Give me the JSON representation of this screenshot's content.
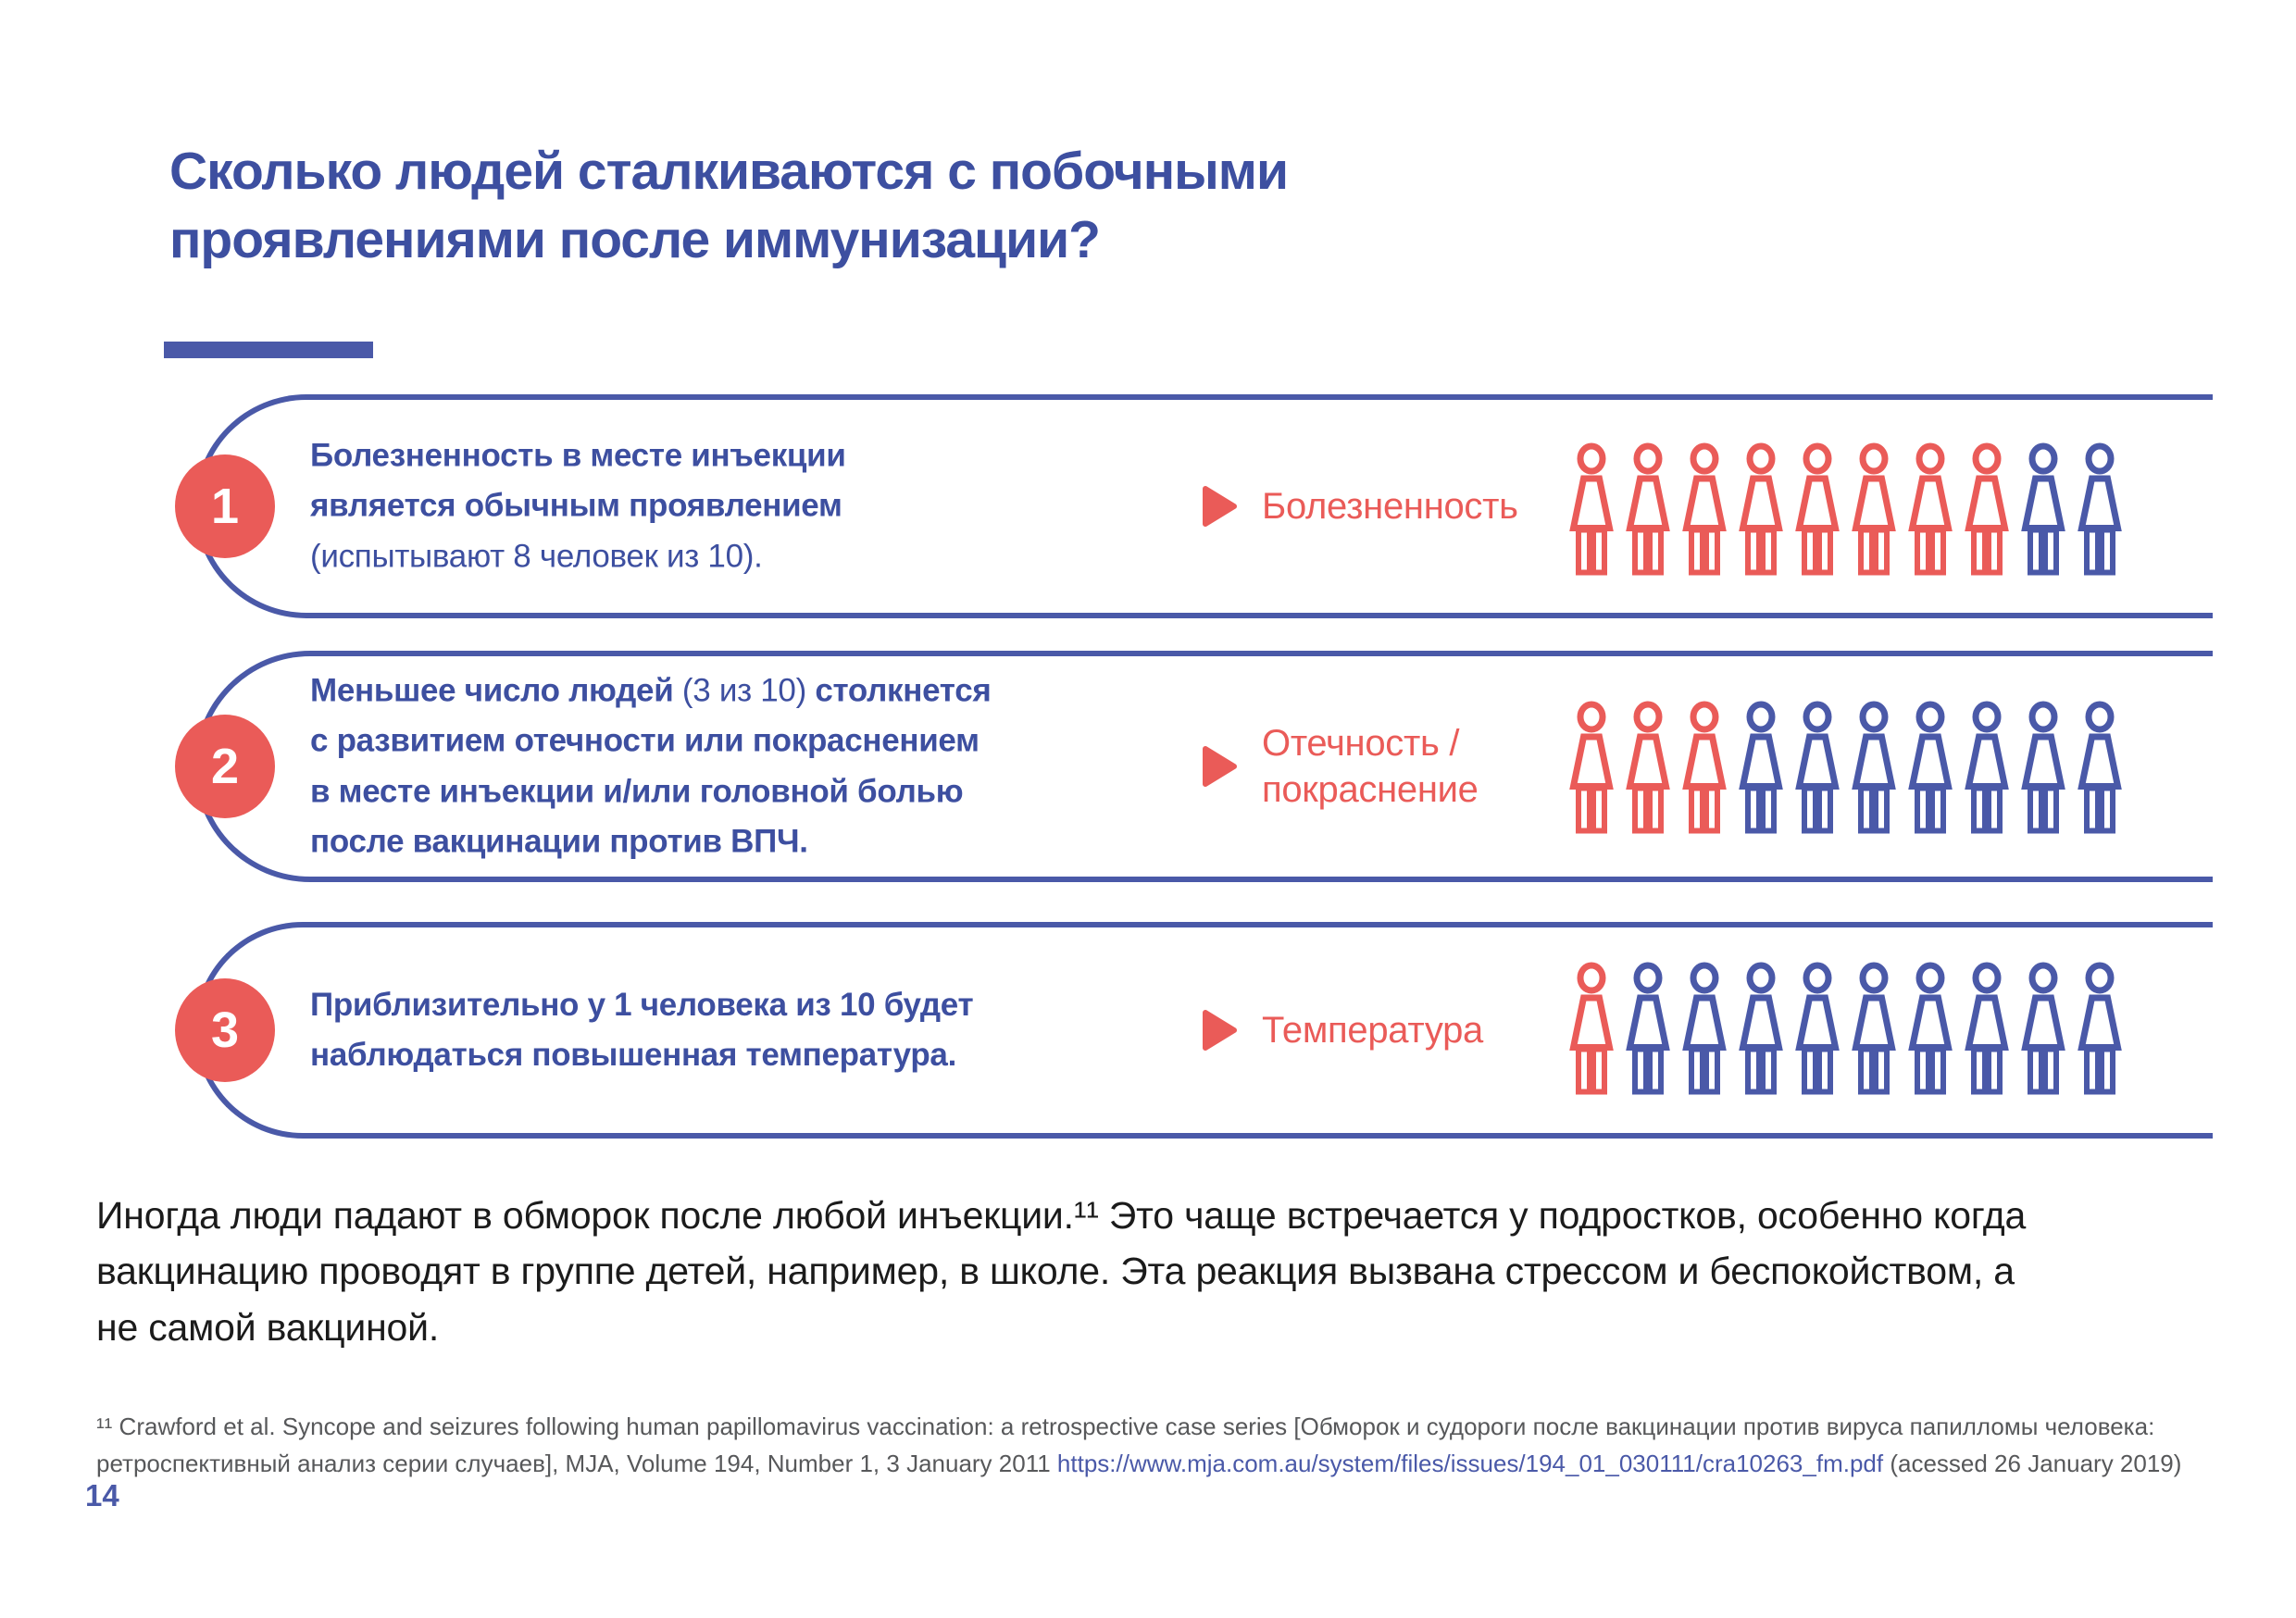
{
  "colors": {
    "red": "#EA5B58",
    "blue": "#4A59A8",
    "text": "#3D4FA0",
    "black": "#1B1B1B",
    "gray": "#57585A"
  },
  "title": {
    "line1": "Сколько людей сталкиваются с побочными",
    "line2": "проявлениями после иммунизации?"
  },
  "boxes": [
    {
      "number": "1",
      "lines": [
        [
          {
            "t": "Болезненность в месте инъекции",
            "b": true
          }
        ],
        [
          {
            "t": "является обычным проявлением",
            "b": true
          }
        ],
        [
          {
            "t": "(испытывают 8 человек из 10).",
            "b": false
          }
        ]
      ],
      "label_lines": [
        "Болезненность"
      ],
      "icons": {
        "red": 8,
        "blue": 2
      }
    },
    {
      "number": "2",
      "lines": [
        [
          {
            "t": "Меньшее число людей ",
            "b": true
          },
          {
            "t": "(3 из 10)",
            "b": false
          },
          {
            "t": " столкнется",
            "b": true
          }
        ],
        [
          {
            "t": "с развитием отечности или покраснением",
            "b": true
          }
        ],
        [
          {
            "t": "в месте инъекции и/или головной болью",
            "b": true
          }
        ],
        [
          {
            "t": "после вакцинации против ВПЧ.",
            "b": true
          }
        ]
      ],
      "label_lines": [
        "Отечность /",
        "покраснение"
      ],
      "icons": {
        "red": 3,
        "blue": 7
      }
    },
    {
      "number": "3",
      "lines": [
        [
          {
            "t": "Приблизительно у 1 человека из 10 будет",
            "b": true
          }
        ],
        [
          {
            "t": "наблюдаться повышенная температура.",
            "b": true
          }
        ]
      ],
      "label_lines": [
        "Температура"
      ],
      "icons": {
        "red": 1,
        "blue": 9
      }
    }
  ],
  "paragraph": {
    "lines": [
      "Иногда люди падают в обморок после любой инъекции.¹¹ Это чаще встречается у подростков, особенно когда",
      "вакцинацию проводят в группе детей, например, в школе. Эта реакция вызвана стрессом и беспокойством, а",
      "не самой вакциной."
    ]
  },
  "footnote": {
    "segments": [
      {
        "t": "¹¹  "
      },
      {
        "t": "Crawford et al. Syncope and seizures following human papillomavirus vaccination: a retrospective case series [Обморок и судороги после вакцинации против вируса папилломы человека: ретроспективный анализ серии случаев], MJA, Volume 194, Number 1, 3 January 2011 "
      },
      {
        "t": "https://www.mja.com.au/system/files/issues/194_01_030111/cra10263_fm.pdf",
        "link": true
      },
      {
        "t": " (acessed 26 January 2019)"
      }
    ]
  },
  "page_number": "14"
}
